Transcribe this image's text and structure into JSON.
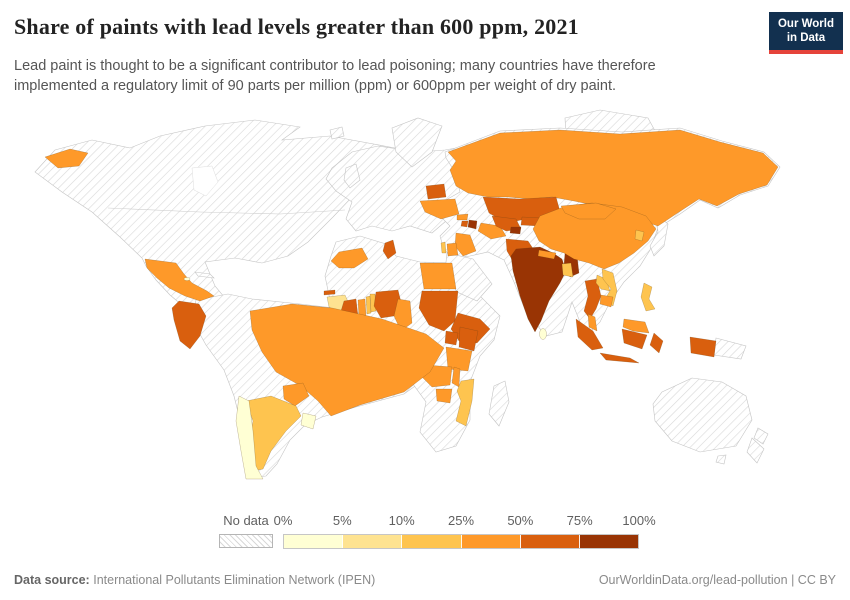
{
  "header": {
    "title": "Share of paints with lead levels greater than 600 ppm, 2021",
    "subtitle": "Lead paint is thought to be a significant contributor to lead poisoning; many countries have therefore implemented a regulatory limit of 90 parts per million (ppm) or 600ppm per weight of dry paint.",
    "logo": {
      "line1": "Our World",
      "line2": "in Data"
    }
  },
  "footer": {
    "datasource_label": "Data source:",
    "datasource_value": "International Pollutants Elimination Network (IPEN)",
    "link": "OurWorldinData.org/lead-pollution",
    "separator": " | ",
    "license": "CC BY"
  },
  "colors": {
    "logo_bg": "#12304f",
    "logo_accent": "#e5433a",
    "title_text": "#232323",
    "subtitle_text": "#555555",
    "footer_text": "#8a8a8a"
  },
  "chart_data": {
    "type": "choropleth",
    "title": "Share of paints with lead levels greater than 600 ppm",
    "year": "2021",
    "unit": "%",
    "no_data_label": "No data",
    "no_data_style": "diagonal-hatch",
    "legend_ticks": [
      "0%",
      "5%",
      "10%",
      "25%",
      "50%",
      "75%",
      "100%"
    ],
    "bin_ranges": [
      "0–5%",
      "5–10%",
      "10–25%",
      "25–50%",
      "50–75%",
      "75–100%"
    ],
    "colors": [
      "#ffffd4",
      "#fee391",
      "#fec44f",
      "#fe9929",
      "#d95f0e",
      "#993404"
    ],
    "countries": [
      {
        "id": "jamaica",
        "name": "Jamaica",
        "bin": 0
      },
      {
        "id": "chile",
        "name": "Chile",
        "bin": 0
      },
      {
        "id": "uruguay",
        "name": "Uruguay",
        "bin": 0
      },
      {
        "id": "sri-lanka",
        "name": "Sri Lanka",
        "bin": 0
      },
      {
        "id": "guinea",
        "name": "Guinea",
        "bin": 1
      },
      {
        "id": "argentina",
        "name": "Argentina",
        "bin": 2
      },
      {
        "id": "togo",
        "name": "Togo",
        "bin": 2
      },
      {
        "id": "benin",
        "name": "Benin",
        "bin": 2
      },
      {
        "id": "mozambique",
        "name": "Mozambique",
        "bin": 2
      },
      {
        "id": "israel",
        "name": "Israel",
        "bin": 2
      },
      {
        "id": "bangladesh",
        "name": "Bangladesh",
        "bin": 2
      },
      {
        "id": "laos",
        "name": "Laos",
        "bin": 2
      },
      {
        "id": "vietnam",
        "name": "Vietnam",
        "bin": 2
      },
      {
        "id": "philippines",
        "name": "Philippines",
        "bin": 2
      },
      {
        "id": "south-korea",
        "name": "South Korea",
        "bin": 2
      },
      {
        "id": "mexico",
        "name": "Mexico",
        "bin": 3
      },
      {
        "id": "brazil",
        "name": "Brazil",
        "bin": 3
      },
      {
        "id": "paraguay",
        "name": "Paraguay",
        "bin": 3
      },
      {
        "id": "morocco",
        "name": "Morocco",
        "bin": 3
      },
      {
        "id": "egypt",
        "name": "Egypt",
        "bin": 3
      },
      {
        "id": "ghana",
        "name": "Ghana",
        "bin": 3
      },
      {
        "id": "cameroon",
        "name": "Cameroon",
        "bin": 3
      },
      {
        "id": "tanzania",
        "name": "Tanzania",
        "bin": 3
      },
      {
        "id": "zambia",
        "name": "Zambia",
        "bin": 3
      },
      {
        "id": "malawi",
        "name": "Malawi",
        "bin": 3
      },
      {
        "id": "zimbabwe",
        "name": "Zimbabwe",
        "bin": 3
      },
      {
        "id": "jordan",
        "name": "Jordan",
        "bin": 3
      },
      {
        "id": "iraq",
        "name": "Iraq",
        "bin": 3
      },
      {
        "id": "georgia",
        "name": "Georgia",
        "bin": 3
      },
      {
        "id": "ukraine",
        "name": "Ukraine",
        "bin": 3
      },
      {
        "id": "russia",
        "name": "Russia",
        "bin": 3
      },
      {
        "id": "turkmenistan",
        "name": "Turkmenistan",
        "bin": 3
      },
      {
        "id": "nepal",
        "name": "Nepal",
        "bin": 3
      },
      {
        "id": "china",
        "name": "China",
        "bin": 3
      },
      {
        "id": "mongolia",
        "name": "Mongolia",
        "bin": 3
      },
      {
        "id": "cambodia",
        "name": "Cambodia",
        "bin": 3
      },
      {
        "id": "malaysia",
        "name": "Malaysia",
        "bin": 3
      },
      {
        "id": "colombia",
        "name": "Colombia",
        "bin": 4
      },
      {
        "id": "tunisia",
        "name": "Tunisia",
        "bin": 4
      },
      {
        "id": "sudan",
        "name": "Sudan",
        "bin": 4
      },
      {
        "id": "ethiopia",
        "name": "Ethiopia",
        "bin": 4
      },
      {
        "id": "gambia",
        "name": "Gambia",
        "bin": 4
      },
      {
        "id": "cote-divoire",
        "name": "Cote d'Ivoire",
        "bin": 4
      },
      {
        "id": "nigeria",
        "name": "Nigeria",
        "bin": 4
      },
      {
        "id": "uganda",
        "name": "Uganda",
        "bin": 4
      },
      {
        "id": "kenya",
        "name": "Kenya",
        "bin": 4
      },
      {
        "id": "belarus",
        "name": "Belarus",
        "bin": 4
      },
      {
        "id": "kazakhstan",
        "name": "Kazakhstan",
        "bin": 4
      },
      {
        "id": "uzbekistan",
        "name": "Uzbekistan",
        "bin": 4
      },
      {
        "id": "kyrgyzstan",
        "name": "Kyrgyzstan",
        "bin": 4
      },
      {
        "id": "armenia",
        "name": "Armenia",
        "bin": 4
      },
      {
        "id": "pakistan",
        "name": "Pakistan",
        "bin": 4
      },
      {
        "id": "thailand",
        "name": "Thailand",
        "bin": 4
      },
      {
        "id": "indonesia",
        "name": "Indonesia",
        "bin": 4
      },
      {
        "id": "india",
        "name": "India",
        "bin": 5
      },
      {
        "id": "azerbaijan",
        "name": "Azerbaijan",
        "bin": 5
      },
      {
        "id": "tajikistan",
        "name": "Tajikistan",
        "bin": 5
      }
    ]
  }
}
